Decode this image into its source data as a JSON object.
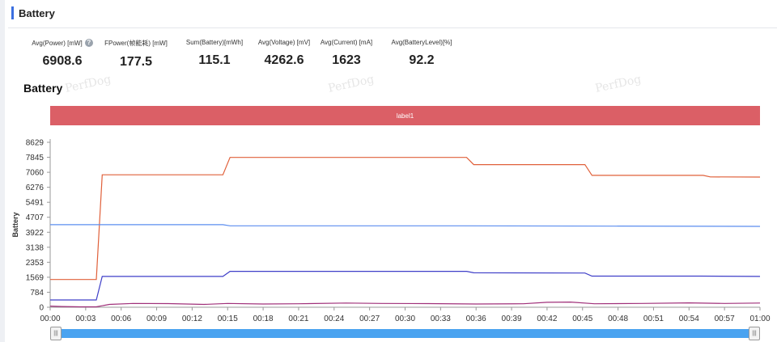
{
  "section": {
    "title": "Battery"
  },
  "metrics": [
    {
      "label": "Avg(Power) [mW]",
      "value": "6908.6",
      "help": true
    },
    {
      "label": "FPower(帧能耗) [mW]",
      "value": "177.5"
    },
    {
      "label": "Sum(Battery)[mWh]",
      "value": "115.1"
    },
    {
      "label": "Avg(Voltage) [mV]",
      "value": "4262.6"
    },
    {
      "label": "Avg(Current) [mA]",
      "value": "1623"
    },
    {
      "label": "Avg(BatteryLevel)[%]",
      "value": "92.2"
    }
  ],
  "icons": {
    "help": "question-circle-icon",
    "slider_handle": "grip-icon"
  },
  "watermark_text": "PerfDog",
  "colors": {
    "accent": "#3b6fe0",
    "label_band": "#db5f66",
    "slider": "#4aa3f0"
  },
  "chart_data": {
    "type": "line",
    "title": "Battery",
    "ylabel": "Battery",
    "xlabel": "",
    "band_label": "label1",
    "ylim": [
      0,
      8629
    ],
    "yticks": [
      0,
      784,
      1569,
      2353,
      3138,
      3922,
      4707,
      5491,
      6276,
      7060,
      7845,
      8629
    ],
    "xticks": [
      "00:00",
      "00:03",
      "00:06",
      "00:09",
      "00:12",
      "00:15",
      "00:18",
      "00:21",
      "00:24",
      "00:27",
      "00:30",
      "00:33",
      "00:36",
      "00:39",
      "00:42",
      "00:45",
      "00:48",
      "00:51",
      "00:54",
      "00:57",
      "01:00"
    ],
    "x_range_seconds": [
      0,
      60
    ],
    "series": [
      {
        "color": "#e0603a",
        "points": [
          [
            0,
            1450
          ],
          [
            3.9,
            1450
          ],
          [
            4.4,
            6930
          ],
          [
            14.6,
            6930
          ],
          [
            15.2,
            7840
          ],
          [
            24,
            7840
          ],
          [
            35.2,
            7840
          ],
          [
            35.8,
            7460
          ],
          [
            45.2,
            7460
          ],
          [
            45.8,
            6900
          ],
          [
            55.2,
            6900
          ],
          [
            55.8,
            6820
          ],
          [
            60,
            6810
          ]
        ]
      },
      {
        "color": "#5b8def",
        "points": [
          [
            0,
            4320
          ],
          [
            14.6,
            4320
          ],
          [
            15.2,
            4260
          ],
          [
            35,
            4260
          ],
          [
            60,
            4230
          ]
        ]
      },
      {
        "color": "#3f3fc8",
        "points": [
          [
            0,
            380
          ],
          [
            3.9,
            380
          ],
          [
            4.4,
            1610
          ],
          [
            14.6,
            1610
          ],
          [
            15.2,
            1880
          ],
          [
            24,
            1880
          ],
          [
            35.2,
            1880
          ],
          [
            35.8,
            1800
          ],
          [
            45.2,
            1790
          ],
          [
            45.8,
            1630
          ],
          [
            55,
            1630
          ],
          [
            60,
            1610
          ]
        ]
      },
      {
        "color": "#a0307a",
        "points": [
          [
            0,
            60
          ],
          [
            1,
            40
          ],
          [
            2.5,
            20
          ],
          [
            3.9,
            20
          ],
          [
            5,
            150
          ],
          [
            7,
            200
          ],
          [
            10,
            190
          ],
          [
            13,
            150
          ],
          [
            15,
            200
          ],
          [
            18,
            170
          ],
          [
            21,
            180
          ],
          [
            25,
            220
          ],
          [
            28,
            200
          ],
          [
            32,
            190
          ],
          [
            36,
            170
          ],
          [
            40,
            180
          ],
          [
            42,
            260
          ],
          [
            44,
            270
          ],
          [
            46,
            180
          ],
          [
            50,
            200
          ],
          [
            54,
            230
          ],
          [
            57,
            200
          ],
          [
            60,
            220
          ]
        ]
      }
    ]
  }
}
